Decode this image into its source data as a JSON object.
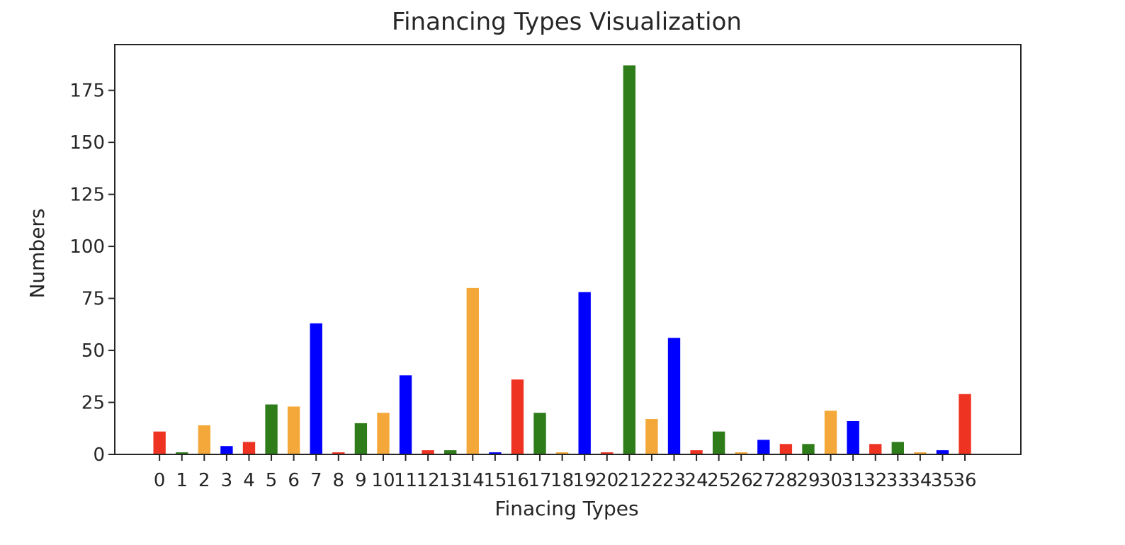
{
  "chart_data": {
    "type": "bar",
    "title": "Financing Types Visualization",
    "xlabel": "Finacing Types",
    "ylabel": "Numbers",
    "ylim": [
      0,
      197
    ],
    "xlim": [
      -2.0,
      38.5
    ],
    "yticks": [
      0,
      25,
      50,
      75,
      100,
      125,
      150,
      175
    ],
    "grid": false,
    "legend": "none",
    "categories": [
      "0",
      "1",
      "2",
      "3",
      "4",
      "5",
      "6",
      "7",
      "8",
      "9",
      "10",
      "11",
      "12",
      "13",
      "14",
      "15",
      "16",
      "17",
      "18",
      "19",
      "20",
      "21",
      "22",
      "23",
      "24",
      "25",
      "26",
      "27",
      "28",
      "29",
      "30",
      "31",
      "32",
      "33",
      "34",
      "35",
      "36"
    ],
    "values": [
      11,
      1,
      14,
      4,
      6,
      24,
      23,
      63,
      1,
      15,
      20,
      38,
      2,
      2,
      80,
      1,
      36,
      20,
      1,
      78,
      1,
      187,
      17,
      56,
      2,
      11,
      1,
      7,
      5,
      5,
      21,
      16,
      5,
      6,
      1,
      2,
      29
    ],
    "bar_colors": [
      "#ee3322",
      "#2e7d1a",
      "#f5a83a",
      "#0000ff"
    ]
  }
}
